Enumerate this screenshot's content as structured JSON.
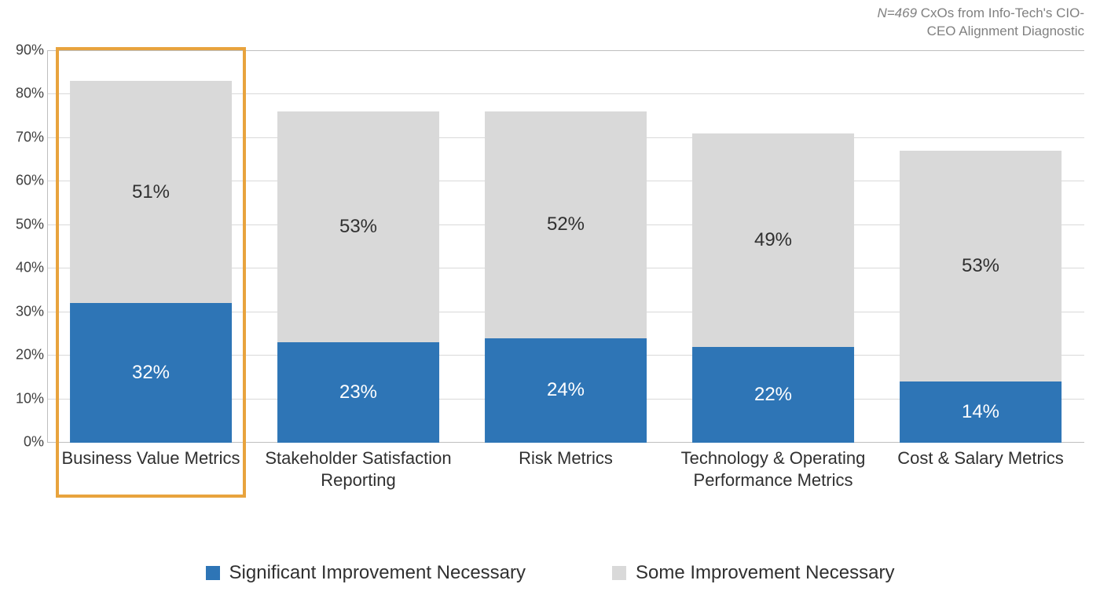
{
  "caption": {
    "line1_italic": "N=469",
    "line1_rest": " CxOs from Info-Tech's CIO-",
    "line2": "CEO Alignment Diagnostic",
    "color": "#808080",
    "fontsize": 17
  },
  "chart": {
    "type": "stacked-bar",
    "background_color": "#ffffff",
    "grid_color": "#d9d9d9",
    "axis_color": "#bfbfbf",
    "ylim": [
      0,
      90
    ],
    "ytick_step": 10,
    "ytick_suffix": "%",
    "ytick_fontsize": 18,
    "ytick_color": "#404040",
    "bar_width_pct": 78,
    "value_label_fontsize": 24,
    "value_label_suffix": "%",
    "categories": [
      {
        "label": "Business Value Metrics",
        "significant": 32,
        "some": 51
      },
      {
        "label": "Stakeholder Satisfaction Reporting",
        "significant": 23,
        "some": 53
      },
      {
        "label": "Risk Metrics",
        "significant": 24,
        "some": 52
      },
      {
        "label": "Technology & Operating Performance Metrics",
        "significant": 22,
        "some": 49
      },
      {
        "label": "Cost & Salary Metrics",
        "significant": 14,
        "some": 53
      }
    ],
    "xlabel_fontsize": 22,
    "xlabel_color": "#303030",
    "series": {
      "significant": {
        "label": "Significant Improvement Necessary",
        "color": "#2e75b6",
        "text_color": "#ffffff"
      },
      "some": {
        "label": "Some Improvement Necessary",
        "color": "#d9d9d9",
        "text_color": "#303030"
      }
    },
    "legend": {
      "fontsize": 24,
      "swatch_size": 18,
      "gap": 110
    },
    "highlight": {
      "category_index": 0,
      "border_color": "#e8a33d",
      "border_width": 4
    }
  }
}
